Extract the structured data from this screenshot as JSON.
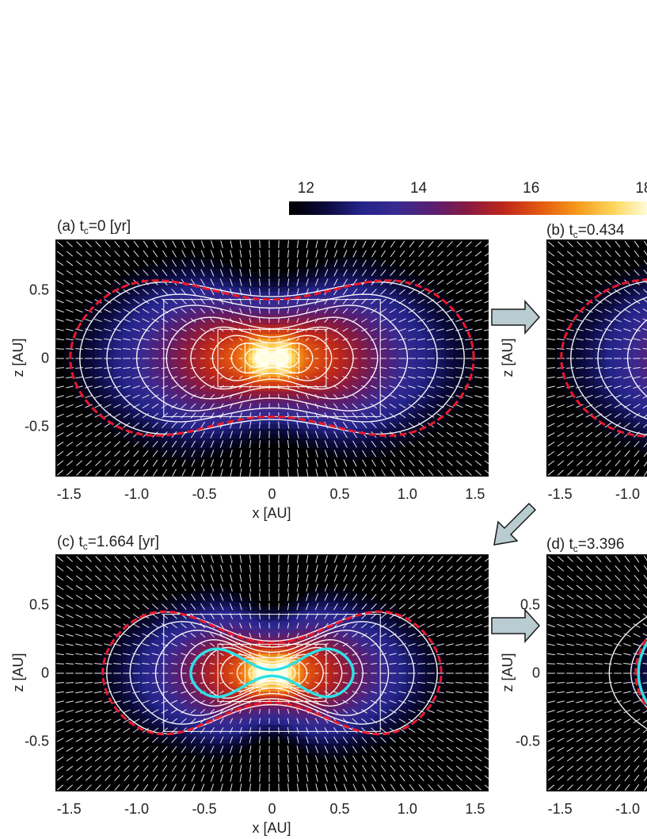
{
  "chart_data": {
    "type": "heatmap",
    "colorbar": {
      "ticks": [
        12,
        14,
        16,
        18
      ],
      "tick_labels": [
        "12",
        "14",
        "16",
        "18"
      ],
      "range": [
        11.7,
        18.1
      ],
      "colors": [
        "#000000",
        "#0a0a3c",
        "#24248a",
        "#3a2a90",
        "#5a1e70",
        "#8a1a40",
        "#c02818",
        "#e45a10",
        "#f59a1c",
        "#fcd65a",
        "#ffffe0"
      ]
    },
    "panels": [
      {
        "id": "a",
        "title": "(a) t",
        "title_sub": "c",
        "title_rest": "=0 [yr]",
        "xlabel": "x [AU]",
        "ylabel": "z [AU]",
        "xlim": [
          -1.6,
          1.6
        ],
        "ylim": [
          -0.87,
          0.87
        ],
        "xticks": [
          -1.5,
          -1.0,
          -0.5,
          0,
          0.5,
          1.0,
          1.5
        ],
        "xtick_labels": [
          "-1.5",
          "-1.0",
          "-0.5",
          "0",
          "0.5",
          "1.0",
          "1.5"
        ],
        "yticks": [
          -0.5,
          0,
          0.5
        ],
        "ytick_labels": [
          "-0.5",
          "0",
          "0.5"
        ],
        "first_core": false,
        "grid_boxes": [
          [
            -0.8,
            0.8,
            -0.43,
            0.43
          ],
          [
            -0.4,
            0.4,
            -0.21,
            0.21
          ],
          [
            -0.2,
            0.2,
            -0.11,
            0.11
          ]
        ],
        "red_boundary": {
          "a": 1.49,
          "b": 0.81,
          "waist": 0.43
        },
        "peak_log_density": 18
      },
      {
        "id": "b",
        "title": "(b) t",
        "title_sub": "c",
        "title_rest": "=0.434",
        "xtick_labels": [
          "-1.5",
          "-1.0"
        ],
        "ytick_labels": []
      },
      {
        "id": "c",
        "title": "(c) t",
        "title_sub": "c",
        "title_rest": "=1.664 [yr]",
        "xlabel": "x [AU]",
        "ylabel": "z [AU]",
        "xlim": [
          -1.6,
          1.6
        ],
        "ylim": [
          -0.87,
          0.87
        ],
        "xticks": [
          -1.5,
          -1.0,
          -0.5,
          0,
          0.5,
          1.0,
          1.5
        ],
        "xtick_labels": [
          "-1.5",
          "-1.0",
          "-0.5",
          "0",
          "0.5",
          "1.0",
          "1.5"
        ],
        "yticks": [
          -0.5,
          0,
          0.5
        ],
        "ytick_labels": [
          "-0.5",
          "0",
          "0.5"
        ],
        "first_core": true,
        "grid_boxes": [
          [
            -0.8,
            0.8,
            -0.43,
            0.43
          ],
          [
            -0.4,
            0.4,
            -0.21,
            0.21
          ],
          [
            -0.2,
            0.2,
            -0.11,
            0.11
          ]
        ],
        "red_boundary": {
          "a": 1.25,
          "b": 0.68,
          "waist": 0.22
        },
        "peak_log_density": 18
      },
      {
        "id": "d",
        "title": "(d) t",
        "title_sub": "c",
        "title_rest": "=3.396",
        "xtick_labels": [
          "-1.5",
          "-1.0"
        ],
        "ytick_labels": [
          "0.5",
          "0",
          "-0.5"
        ]
      }
    ]
  }
}
